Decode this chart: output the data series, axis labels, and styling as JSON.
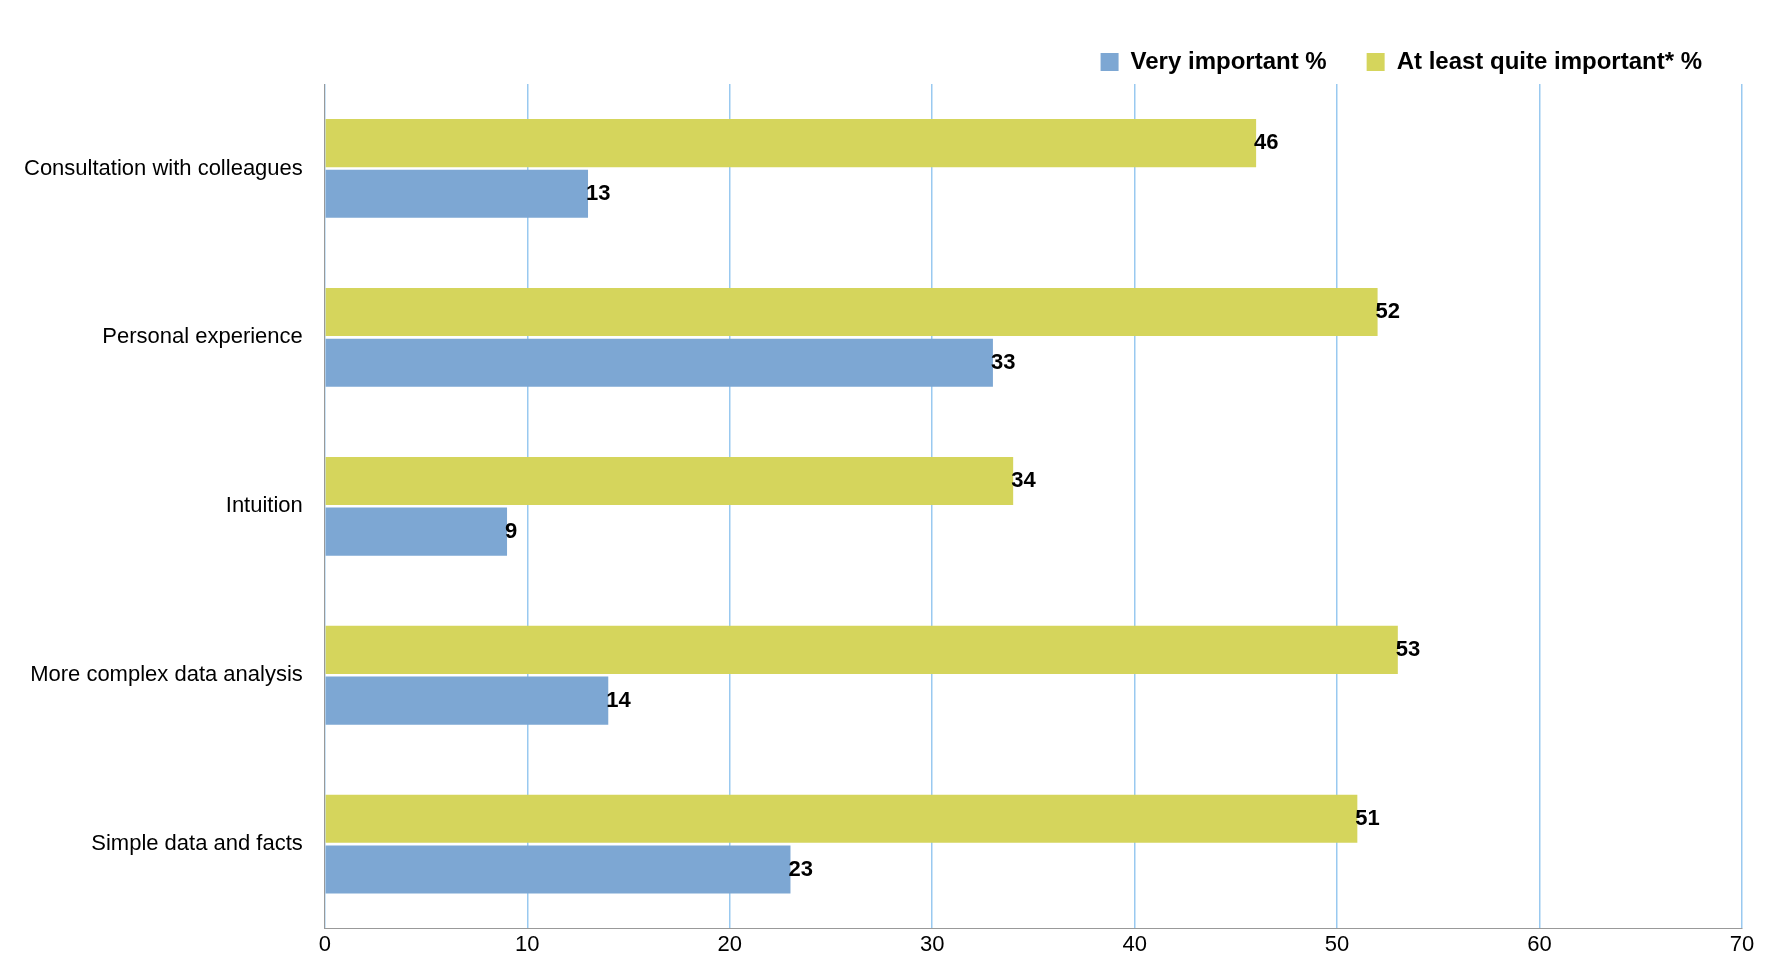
{
  "chart_data": {
    "type": "bar",
    "orientation": "horizontal",
    "categories": [
      "Consultation with colleagues",
      "Personal experience",
      "Intuition",
      "More complex data analysis",
      "Simple data and facts"
    ],
    "series": [
      {
        "name": "Very important %",
        "color": "#7da7d3",
        "values": [
          13,
          33,
          9,
          14,
          23
        ]
      },
      {
        "name": "At least quite important* %",
        "color": "#d5d55c",
        "values": [
          46,
          52,
          34,
          53,
          51
        ]
      }
    ],
    "xlim": [
      0,
      70
    ],
    "xticks": [
      0,
      10,
      20,
      30,
      40,
      50,
      60,
      70
    ],
    "grid": "x",
    "legend": "top right",
    "data_labels": true
  }
}
